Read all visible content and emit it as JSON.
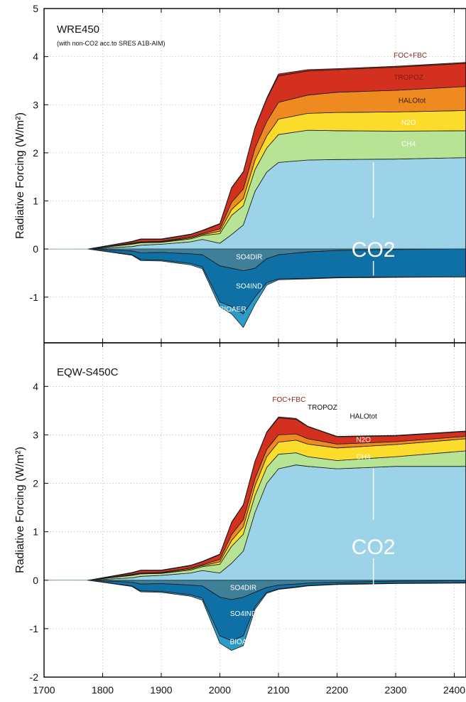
{
  "chart_data": {
    "type": "area",
    "x_axis": {
      "range": [
        1700,
        2420
      ],
      "ticks": [
        1700,
        1800,
        1900,
        2000,
        2100,
        2200,
        2300,
        2400
      ]
    },
    "y_label": "Radiative Forcing (W/m²)",
    "grid": true,
    "colors": {
      "CO2": "#9dd3e8",
      "CH4": "#b7e395",
      "N2O": "#fbdc2a",
      "HALOtot": "#ee8a1f",
      "TROPOZ": "#d3301f",
      "FOC+FBC": "#b5281a",
      "SO4DIR": "#3f7f97",
      "SO4IND": "#0f70a6",
      "BIOAER": "#2d9bc8"
    },
    "panels": [
      {
        "title": "WRE450",
        "subtitle": "(with non-CO2 acc.to SRES A1B-AIM)",
        "y_range": [
          -1.95,
          5
        ],
        "y_ticks": [
          5,
          4,
          3,
          2,
          1,
          0,
          -1
        ],
        "big_label": "CO2",
        "x": [
          1775,
          1850,
          1865,
          1900,
          1950,
          1970,
          2000,
          2020,
          2040,
          2060,
          2080,
          2100,
          2150,
          2200,
          2300,
          2420
        ],
        "positive_stack": [
          {
            "name": "CO2",
            "values": [
              0,
              0.05,
              0.08,
              0.1,
              0.15,
              0.2,
              0.12,
              0.3,
              0.5,
              1.2,
              1.6,
              1.8,
              1.85,
              1.86,
              1.87,
              1.9
            ]
          },
          {
            "name": "CH4",
            "values": [
              0,
              0.05,
              0.05,
              0.04,
              0.06,
              0.08,
              0.2,
              0.4,
              0.4,
              0.45,
              0.5,
              0.58,
              0.62,
              0.6,
              0.58,
              0.56
            ]
          },
          {
            "name": "N2O",
            "values": [
              0,
              0.01,
              0.01,
              0.01,
              0.02,
              0.02,
              0.05,
              0.12,
              0.15,
              0.2,
              0.25,
              0.32,
              0.35,
              0.38,
              0.4,
              0.42
            ]
          },
          {
            "name": "HALOtot",
            "values": [
              0,
              0.01,
              0.01,
              0.01,
              0.02,
              0.02,
              0.05,
              0.15,
              0.2,
              0.25,
              0.3,
              0.35,
              0.38,
              0.42,
              0.45,
              0.5
            ]
          },
          {
            "name": "TROPOZ",
            "values": [
              0,
              0.03,
              0.05,
              0.04,
              0.05,
              0.06,
              0.1,
              0.3,
              0.35,
              0.42,
              0.47,
              0.55,
              0.5,
              0.47,
              0.48,
              0.48
            ]
          },
          {
            "name": "FOC+FBC",
            "values": [
              0,
              0.01,
              0.01,
              0.01,
              0.01,
              0.01,
              0.01,
              0.01,
              0.01,
              0.01,
              0.02,
              0.04,
              0.03,
              0.02,
              0.02,
              0.02
            ]
          }
        ],
        "negative_stack": [
          {
            "name": "SO4DIR",
            "values": [
              0,
              -0.04,
              -0.08,
              -0.07,
              -0.1,
              -0.12,
              -0.35,
              -0.4,
              -0.45,
              -0.4,
              -0.2,
              -0.12,
              -0.06,
              -0.03,
              -0.01,
              0
            ]
          },
          {
            "name": "SO4IND",
            "values": [
              0,
              -0.08,
              -0.14,
              -0.16,
              -0.2,
              -0.25,
              -0.75,
              -0.8,
              -0.9,
              -0.6,
              -0.5,
              -0.5,
              -0.55,
              -0.56,
              -0.57,
              -0.58
            ]
          },
          {
            "name": "BIOAER",
            "values": [
              0,
              -0.01,
              -0.02,
              -0.02,
              -0.03,
              -0.04,
              -0.1,
              -0.15,
              -0.28,
              -0.15,
              -0.05,
              -0.02,
              -0.01,
              -0.01,
              -0.01,
              0
            ]
          }
        ],
        "labels": {
          "FOC+FBC": "FOC+FBC",
          "TROPOZ": "TROPOZ",
          "HALOtot": "HALOtot",
          "N2O": "N2O",
          "CH4": "CH4",
          "SO4DIR": "SO4DIR",
          "SO4IND": "SO4IND",
          "BIOAER": "BIOAER"
        }
      },
      {
        "title": "EQW-S450C",
        "subtitle": "",
        "y_range": [
          -2,
          4.9
        ],
        "y_ticks": [
          4,
          3,
          2,
          1,
          0,
          -1,
          -2
        ],
        "big_label": "CO2",
        "x": [
          1775,
          1850,
          1865,
          1900,
          1950,
          1970,
          2000,
          2020,
          2040,
          2060,
          2080,
          2100,
          2130,
          2150,
          2200,
          2300,
          2420
        ],
        "positive_stack": [
          {
            "name": "CO2",
            "values": [
              0,
              0.05,
              0.08,
              0.1,
              0.15,
              0.2,
              0.15,
              0.35,
              0.6,
              1.4,
              2.0,
              2.3,
              2.38,
              2.35,
              2.3,
              2.35,
              2.35
            ]
          },
          {
            "name": "CH4",
            "values": [
              0,
              0.05,
              0.05,
              0.04,
              0.06,
              0.08,
              0.18,
              0.35,
              0.35,
              0.35,
              0.33,
              0.3,
              0.25,
              0.2,
              0.17,
              0.2,
              0.32
            ]
          },
          {
            "name": "N2O",
            "values": [
              0,
              0.01,
              0.01,
              0.01,
              0.02,
              0.02,
              0.05,
              0.12,
              0.15,
              0.2,
              0.22,
              0.25,
              0.26,
              0.26,
              0.26,
              0.25,
              0.25
            ]
          },
          {
            "name": "HALOtot",
            "values": [
              0,
              0.01,
              0.01,
              0.01,
              0.02,
              0.02,
              0.05,
              0.12,
              0.15,
              0.15,
              0.15,
              0.15,
              0.13,
              0.11,
              0.08,
              0.06,
              0.05
            ]
          },
          {
            "name": "TROPOZ",
            "values": [
              0,
              0.03,
              0.05,
              0.04,
              0.05,
              0.06,
              0.1,
              0.25,
              0.3,
              0.35,
              0.35,
              0.35,
              0.3,
              0.25,
              0.15,
              0.12,
              0.1
            ]
          },
          {
            "name": "FOC+FBC",
            "values": [
              0,
              0.01,
              0.01,
              0.01,
              0.01,
              0.01,
              0.01,
              0.01,
              0.01,
              0.01,
              0.01,
              0.02,
              0.02,
              0.01,
              0.01,
              0.01,
              0.01
            ]
          }
        ],
        "negative_stack": [
          {
            "name": "SO4DIR",
            "values": [
              0,
              -0.04,
              -0.08,
              -0.07,
              -0.1,
              -0.12,
              -0.35,
              -0.4,
              -0.35,
              -0.25,
              -0.15,
              -0.1,
              -0.08,
              -0.06,
              -0.04,
              -0.02,
              -0.01
            ]
          },
          {
            "name": "SO4IND",
            "values": [
              0,
              -0.08,
              -0.14,
              -0.16,
              -0.2,
              -0.25,
              -0.8,
              -0.85,
              -0.8,
              -0.3,
              -0.1,
              -0.08,
              -0.06,
              -0.05,
              -0.04,
              -0.04,
              -0.04
            ]
          },
          {
            "name": "BIOAER",
            "values": [
              0,
              -0.01,
              -0.02,
              -0.02,
              -0.03,
              -0.04,
              -0.15,
              -0.2,
              -0.2,
              -0.05,
              -0.02,
              -0.01,
              -0.01,
              -0.01,
              -0.01,
              -0.01,
              -0.01
            ]
          }
        ],
        "labels": {
          "FOC+FBC": "FOC+FBC",
          "TROPOZ": "TROPOZ",
          "HALOtot": "HALOtot",
          "N2O": "N2O",
          "CH4": "CH4",
          "SO4DIR": "SO4DIR",
          "SO4IND": "SO4IND",
          "BIOAER": "BIOAER"
        }
      }
    ]
  }
}
